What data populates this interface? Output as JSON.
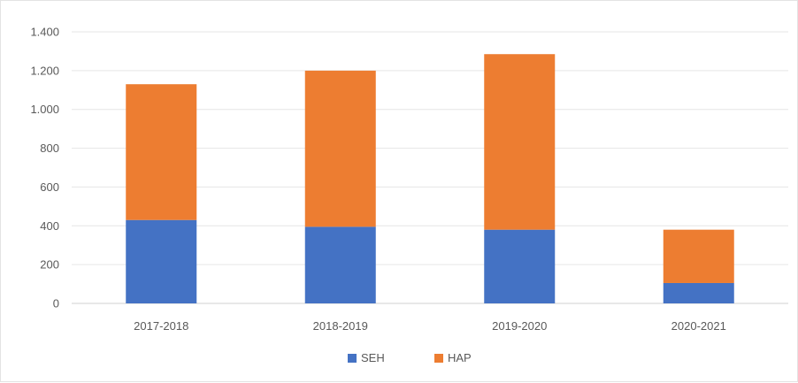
{
  "chart_data": {
    "type": "bar",
    "stacked": true,
    "categories": [
      "2017-2018",
      "2018-2019",
      "2019-2020",
      "2020-2021"
    ],
    "series": [
      {
        "name": "SEH",
        "values": [
          430,
          395,
          380,
          105
        ],
        "color": "#4472C4"
      },
      {
        "name": "HAP",
        "values": [
          700,
          805,
          905,
          275
        ],
        "color": "#ED7D31"
      }
    ],
    "title": "",
    "xlabel": "",
    "ylabel": "",
    "ylim": [
      0,
      1400
    ],
    "yticks": [
      0,
      200,
      400,
      600,
      800,
      1000,
      1200,
      1400
    ],
    "ytick_labels": [
      "0",
      "200",
      "400",
      "600",
      "800",
      "1.000",
      "1.200",
      "1.400"
    ],
    "grid": true,
    "legend_position": "bottom"
  }
}
